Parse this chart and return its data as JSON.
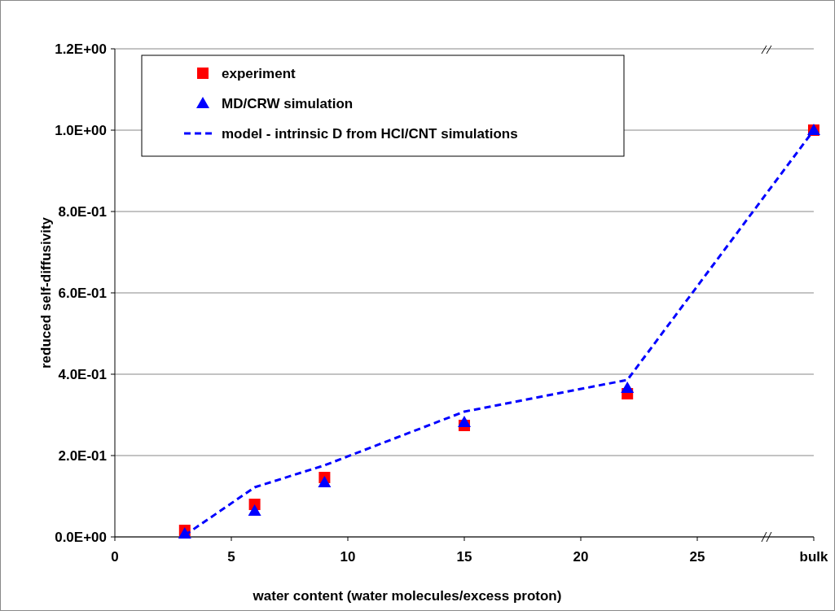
{
  "chart_data": {
    "type": "scatter",
    "xlabel": "water content (water molecules/excess proton)",
    "ylabel": "reduced self-diffusivity",
    "xlim": [
      0,
      30
    ],
    "xticks": [
      0,
      5,
      10,
      15,
      20,
      25,
      {
        "value": 30,
        "label": "bulk"
      }
    ],
    "ylim": [
      0,
      1.2
    ],
    "yticks": [
      {
        "value": 0,
        "label": "0.0E+00"
      },
      {
        "value": 0.2,
        "label": "2.0E-01"
      },
      {
        "value": 0.4,
        "label": "4.0E-01"
      },
      {
        "value": 0.6,
        "label": "6.0E-01"
      },
      {
        "value": 0.8,
        "label": "8.0E-01"
      },
      {
        "value": 1,
        "label": "1.0E+00"
      },
      {
        "value": 1.2,
        "label": "1.2E+00"
      }
    ],
    "grid": "y",
    "legend": "top left",
    "series": [
      {
        "name": "experiment",
        "marker": "square",
        "color": "#ff0000",
        "x": [
          3,
          6,
          9,
          15,
          22,
          30
        ],
        "values": [
          0.016,
          0.08,
          0.146,
          0.274,
          0.352,
          1.0
        ]
      },
      {
        "name": "MD/CRW simulation",
        "marker": "triangle",
        "color": "#0000ff",
        "x": [
          3,
          6,
          9,
          15,
          22,
          30
        ],
        "values": [
          0.008,
          0.064,
          0.134,
          0.282,
          0.366,
          1.0
        ]
      },
      {
        "name": "model - intrinsic D from HCl/CNT simulations",
        "type": "line",
        "marker": "none",
        "line_style": "dashed",
        "color": "#0000ff",
        "x": [
          3,
          6,
          9,
          15,
          22,
          30
        ],
        "values": [
          0.004,
          0.122,
          0.176,
          0.308,
          0.386,
          1.0
        ]
      }
    ]
  }
}
